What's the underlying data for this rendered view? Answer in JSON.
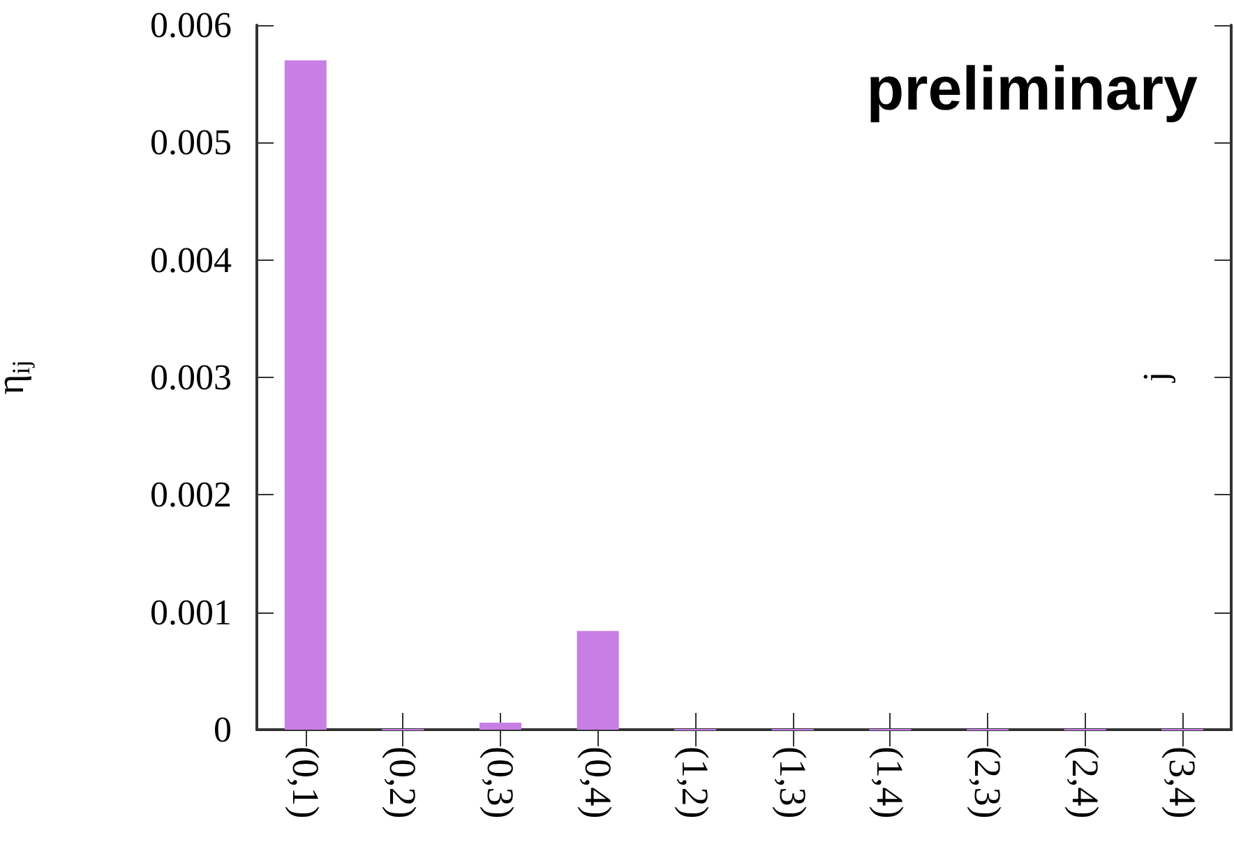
{
  "chart_data": {
    "type": "bar",
    "categories": [
      "(0,1)",
      "(0,2)",
      "(0,3)",
      "(0,4)",
      "(1,2)",
      "(1,3)",
      "(1,4)",
      "(2,3)",
      "(2,4)",
      "(3,4)"
    ],
    "values": [
      0.0057,
      0,
      6e-05,
      0.00084,
      0,
      0,
      0,
      0,
      0,
      0
    ],
    "color": "#c77fe6",
    "ylabel": "η$_{ij}$",
    "y2label": "j",
    "annotations": [
      "preliminary"
    ],
    "ylim": [
      0,
      0.006
    ],
    "yticks": [
      0,
      0.001,
      0.002,
      0.003,
      0.004,
      0.005,
      0.006
    ],
    "grid": false
  }
}
